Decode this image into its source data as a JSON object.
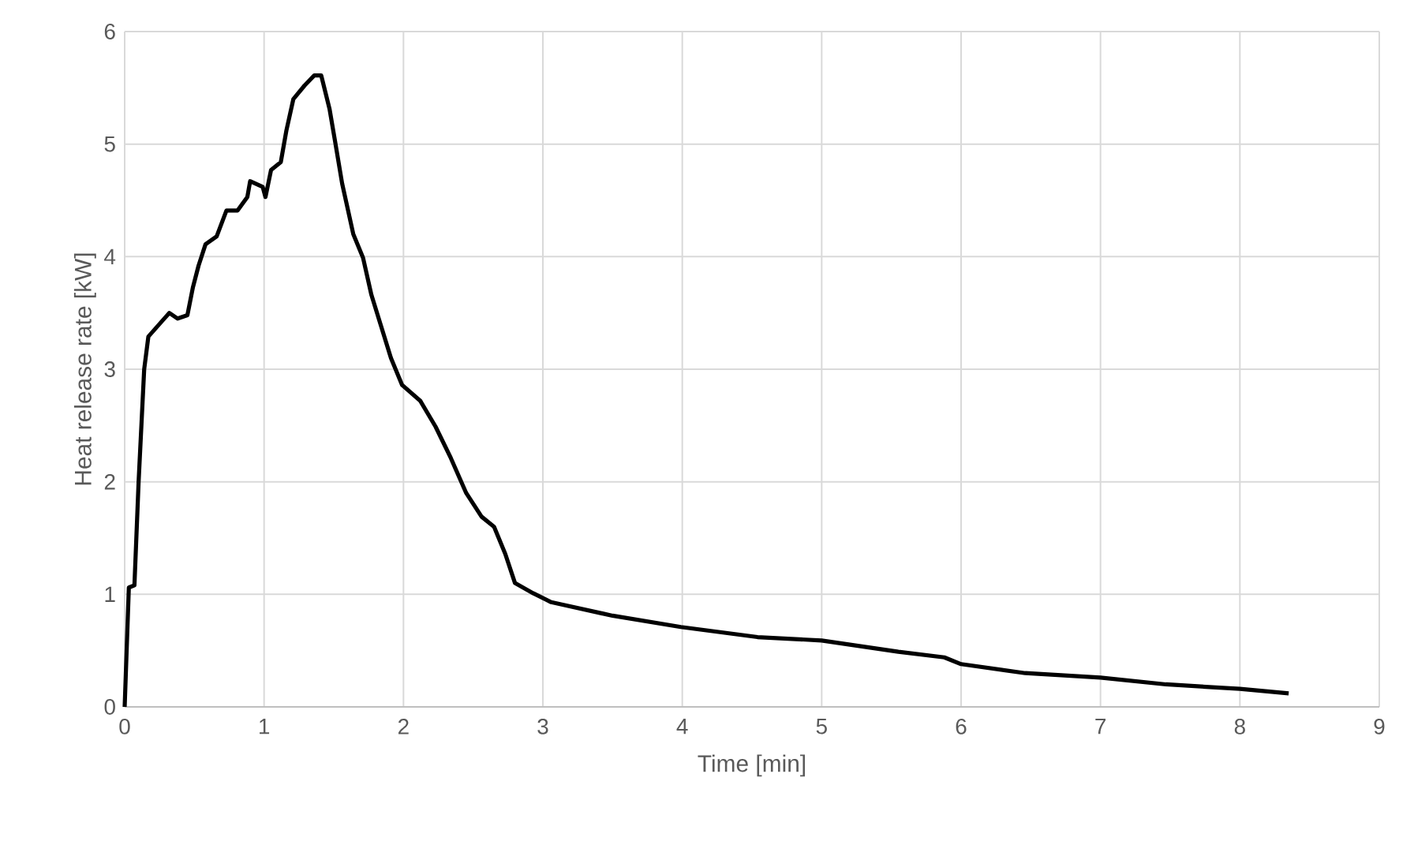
{
  "chart_data": {
    "type": "line",
    "xlabel": "Time [min]",
    "ylabel": "Heat release rate [kW]",
    "xlim": [
      0,
      9
    ],
    "ylim": [
      0,
      6
    ],
    "xticks": [
      0,
      1,
      2,
      3,
      4,
      5,
      6,
      7,
      8,
      9
    ],
    "yticks": [
      0,
      1,
      2,
      3,
      4,
      5,
      6
    ],
    "grid": true,
    "series": [
      {
        "color": "#000000",
        "x": [
          0,
          0.03,
          0.07,
          0.1,
          0.14,
          0.17,
          0.27,
          0.32,
          0.38,
          0.45,
          0.49,
          0.53,
          0.58,
          0.66,
          0.73,
          0.81,
          0.88,
          0.9,
          0.99,
          1.01,
          1.05,
          1.12,
          1.16,
          1.21,
          1.29,
          1.36,
          1.41,
          1.47,
          1.51,
          1.56,
          1.64,
          1.71,
          1.77,
          1.84,
          1.91,
          1.99,
          2.12,
          2.23,
          2.34,
          2.45,
          2.56,
          2.65,
          2.73,
          2.8,
          2.93,
          3.06,
          3.5,
          3.99,
          4.54,
          5.0,
          5.55,
          5.88,
          6.0,
          6.46,
          7.0,
          7.47,
          8.0,
          8.35
        ],
        "values": [
          0,
          1.06,
          1.08,
          2.0,
          3.0,
          3.29,
          3.43,
          3.5,
          3.45,
          3.48,
          3.73,
          3.92,
          4.11,
          4.18,
          4.41,
          4.41,
          4.53,
          4.67,
          4.62,
          4.53,
          4.77,
          4.84,
          5.12,
          5.4,
          5.52,
          5.61,
          5.61,
          5.31,
          5.02,
          4.65,
          4.2,
          3.99,
          3.66,
          3.38,
          3.1,
          2.86,
          2.72,
          2.49,
          2.21,
          1.9,
          1.69,
          1.6,
          1.36,
          1.1,
          1.01,
          0.93,
          0.81,
          0.71,
          0.62,
          0.59,
          0.49,
          0.44,
          0.38,
          0.3,
          0.26,
          0.2,
          0.16,
          0.12
        ]
      }
    ]
  }
}
